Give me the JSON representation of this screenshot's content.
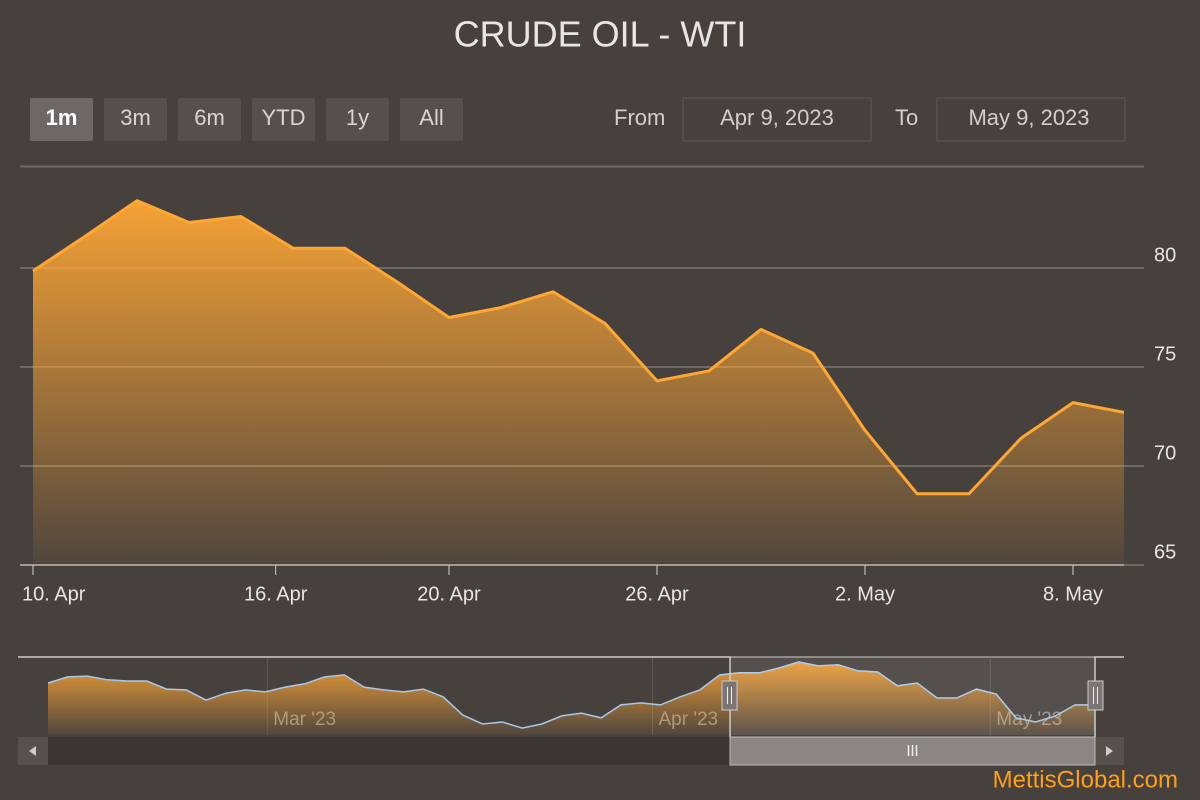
{
  "chart_data": {
    "type": "area",
    "title": "CRUDE OIL - WTI",
    "range_selector": {
      "buttons": [
        "1m",
        "3m",
        "6m",
        "YTD",
        "1y",
        "All"
      ],
      "selected": 0,
      "from_label": "From",
      "from": "Apr 9, 2023",
      "to_label": "To",
      "to": "May 9, 2023"
    },
    "x": [
      "2023-04-10",
      "2023-04-11",
      "2023-04-12",
      "2023-04-13",
      "2023-04-14",
      "2023-04-17",
      "2023-04-18",
      "2023-04-19",
      "2023-04-20",
      "2023-04-21",
      "2023-04-24",
      "2023-04-25",
      "2023-04-26",
      "2023-04-27",
      "2023-04-28",
      "2023-05-01",
      "2023-05-02",
      "2023-05-03",
      "2023-05-04",
      "2023-05-05",
      "2023-05-08",
      "2023-05-09"
    ],
    "values": [
      79.85,
      81.6,
      83.4,
      82.3,
      82.6,
      81.0,
      81.0,
      79.3,
      77.5,
      78.0,
      78.8,
      77.2,
      74.3,
      74.8,
      76.9,
      75.7,
      71.8,
      68.6,
      68.6,
      71.4,
      73.2,
      72.7
    ],
    "color": "#ffa735",
    "ylim": [
      65,
      85
    ],
    "yticks": [
      65,
      70,
      75,
      80
    ],
    "xticks": [
      {
        "value": "2023-04-10",
        "label": "10. Apr"
      },
      {
        "value": "2023-04-16",
        "label": "16. Apr"
      },
      {
        "value": "2023-04-20",
        "label": "20. Apr"
      },
      {
        "value": "2023-04-26",
        "label": "26. Apr"
      },
      {
        "value": "2023-05-02",
        "label": "2. May"
      },
      {
        "value": "2023-05-08",
        "label": "8. May"
      }
    ],
    "grid": true,
    "navigator": {
      "values": [
        78.2,
        79.7,
        79.9,
        79.0,
        78.7,
        78.7,
        76.7,
        76.5,
        74.0,
        75.7,
        76.5,
        76.0,
        77.2,
        78.0,
        79.7,
        80.2,
        77.2,
        76.5,
        76.0,
        76.7,
        74.8,
        70.3,
        68.1,
        68.6,
        67.1,
        68.1,
        70.1,
        70.8,
        69.6,
        72.8,
        73.3,
        72.8,
        74.8,
        76.5,
        80.2,
        80.7,
        80.7,
        81.9,
        83.4,
        82.4,
        82.7,
        81.2,
        80.9,
        77.5,
        78.2,
        74.5,
        74.5,
        76.7,
        75.5,
        69.6,
        68.6,
        70.1,
        72.8,
        72.8
      ],
      "ylim": [
        65.4,
        84.6
      ],
      "color": "#a8c8ea",
      "xticks": [
        {
          "value": 11.1,
          "label": "Mar '23"
        },
        {
          "value": 30.6,
          "label": "Apr '23"
        },
        {
          "value": 47.7,
          "label": "May '23"
        }
      ]
    },
    "credit": "MettisGlobal.com"
  }
}
